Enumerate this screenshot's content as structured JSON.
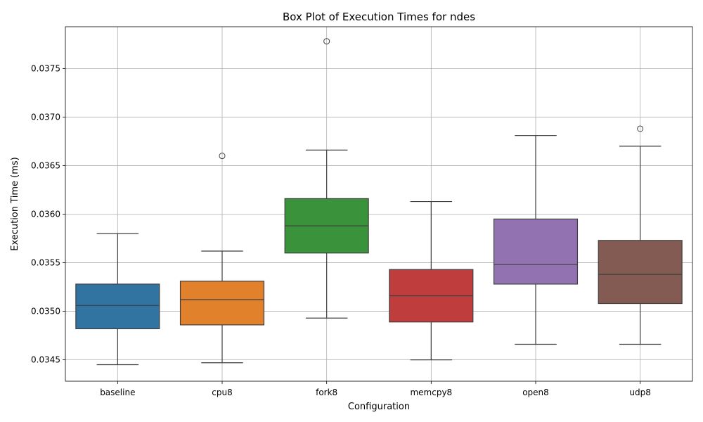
{
  "chart_data": {
    "type": "box",
    "title": "Box Plot of Execution Times for ndes",
    "xlabel": "Configuration",
    "ylabel": "Execution Time (ms)",
    "ylim": [
      0.03428,
      0.03793
    ],
    "yticks": [
      0.0345,
      0.035,
      0.0355,
      0.036,
      0.0365,
      0.037,
      0.0375
    ],
    "ytick_labels": [
      "0.0345",
      "0.0350",
      "0.0355",
      "0.0360",
      "0.0365",
      "0.0370",
      "0.0375"
    ],
    "grid": true,
    "categories": [
      "baseline",
      "cpu8",
      "fork8",
      "memcpy8",
      "open8",
      "udp8"
    ],
    "boxes": [
      {
        "category": "baseline",
        "color": "#3274a1",
        "whisker_low": 0.03445,
        "q1": 0.03482,
        "median": 0.03506,
        "q3": 0.03528,
        "whisker_high": 0.0358,
        "outliers": []
      },
      {
        "category": "cpu8",
        "color": "#e1812c",
        "whisker_low": 0.03447,
        "q1": 0.03486,
        "median": 0.03512,
        "q3": 0.03531,
        "whisker_high": 0.03562,
        "outliers": [
          0.0366
        ]
      },
      {
        "category": "fork8",
        "color": "#3a923a",
        "whisker_low": 0.03493,
        "q1": 0.0356,
        "median": 0.03588,
        "q3": 0.03616,
        "whisker_high": 0.03666,
        "outliers": [
          0.03778
        ]
      },
      {
        "category": "memcpy8",
        "color": "#c03d3e",
        "whisker_low": 0.0345,
        "q1": 0.03489,
        "median": 0.03516,
        "q3": 0.03543,
        "whisker_high": 0.03613,
        "outliers": []
      },
      {
        "category": "open8",
        "color": "#9372b2",
        "whisker_low": 0.03466,
        "q1": 0.03528,
        "median": 0.03548,
        "q3": 0.03595,
        "whisker_high": 0.03681,
        "outliers": []
      },
      {
        "category": "udp8",
        "color": "#845b53",
        "whisker_low": 0.03466,
        "q1": 0.03508,
        "median": 0.03538,
        "q3": 0.03573,
        "whisker_high": 0.0367,
        "outliers": [
          0.03688
        ]
      }
    ]
  }
}
